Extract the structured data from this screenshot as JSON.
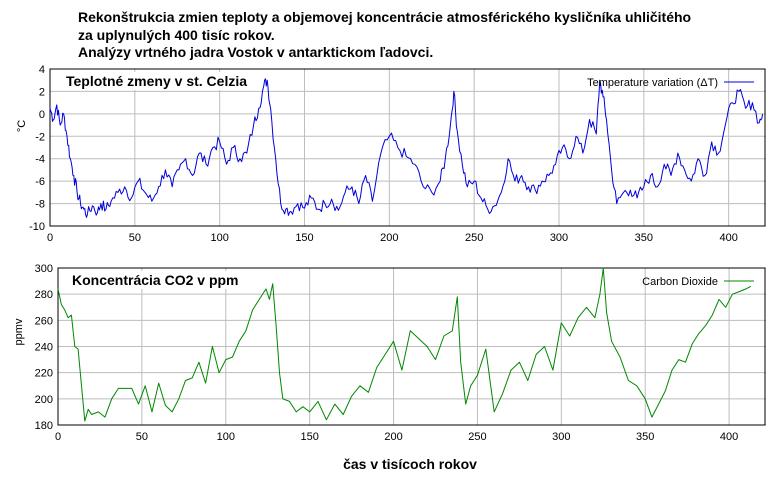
{
  "title_lines": [
    "Rekonštrukcia zmien teploty a objemovej koncentrácie atmosférického kysličníka uhličitého",
    "za uplynulých 400 tisíc rokov.",
    "Analýzy vrtného jadra Vostok v antarktickom ľadovci."
  ],
  "colors": {
    "temperature": "#0000dd",
    "co2": "#008800",
    "grid": "#bdbdbd",
    "frame": "#000000"
  },
  "chart_data": [
    {
      "type": "line",
      "panel_title": "Teplotné zmeny  v st. Celzia",
      "ylabel": "°C",
      "xlim": [
        0,
        422
      ],
      "ylim": [
        -10,
        4
      ],
      "x_ticks": [
        0,
        50,
        100,
        150,
        200,
        250,
        300,
        350,
        400
      ],
      "y_ticks": [
        4,
        2,
        0,
        -2,
        -4,
        -6,
        -8,
        -10
      ],
      "grid": true,
      "legend_position": "top-right",
      "series": [
        {
          "name": "Temperature variation (ΔT)",
          "x": [
            0,
            2,
            4,
            6,
            8,
            10,
            12,
            14,
            16,
            18,
            20,
            22,
            25,
            28,
            30,
            33,
            36,
            40,
            44,
            48,
            52,
            56,
            60,
            64,
            68,
            72,
            76,
            80,
            84,
            88,
            92,
            96,
            100,
            104,
            108,
            112,
            116,
            120,
            123,
            126,
            128,
            130,
            133,
            136,
            139,
            142,
            146,
            150,
            154,
            158,
            162,
            166,
            170,
            174,
            178,
            182,
            186,
            190,
            195,
            200,
            205,
            210,
            215,
            220,
            225,
            230,
            233,
            236,
            238,
            240,
            243,
            246,
            250,
            254,
            258,
            262,
            266,
            270,
            274,
            278,
            282,
            286,
            290,
            294,
            298,
            302,
            306,
            310,
            314,
            318,
            322,
            324,
            326,
            328,
            331,
            334,
            338,
            342,
            346,
            350,
            354,
            358,
            362,
            366,
            370,
            374,
            378,
            382,
            386,
            390,
            394,
            398,
            402,
            406,
            410,
            414,
            418,
            420
          ],
          "y": [
            0.5,
            -0.5,
            0.8,
            -1,
            0,
            -2,
            -4,
            -5.5,
            -7,
            -8,
            -8.5,
            -9,
            -8.2,
            -8.8,
            -8,
            -8.5,
            -7.8,
            -7,
            -6.5,
            -7.5,
            -6,
            -7,
            -7.8,
            -6.5,
            -5,
            -6.5,
            -5,
            -4,
            -5.5,
            -3.5,
            -4.5,
            -3,
            -2.5,
            -4.5,
            -3,
            -4,
            -3.5,
            -1,
            0.5,
            2.5,
            3,
            0.5,
            -4,
            -8,
            -8.5,
            -8.7,
            -8,
            -8.4,
            -7.5,
            -8.5,
            -8,
            -7.6,
            -8.6,
            -7,
            -6.5,
            -8,
            -5.5,
            -7.8,
            -3.5,
            -2,
            -3,
            -3.8,
            -4.5,
            -6.5,
            -7,
            -6,
            -4,
            -1,
            2,
            -1.5,
            -4.5,
            -6.5,
            -6,
            -7.5,
            -8.5,
            -8.2,
            -7,
            -4,
            -6,
            -5.5,
            -6.5,
            -6.8,
            -6,
            -5.5,
            -4.5,
            -3,
            -4,
            -2,
            -3.5,
            -0.5,
            -1.8,
            3,
            1.5,
            -0.5,
            -5,
            -8,
            -7,
            -6.8,
            -7.5,
            -6.5,
            -5.5,
            -6.5,
            -4.5,
            -5.5,
            -3.5,
            -5,
            -6,
            -4,
            -5.5,
            -2.5,
            -3.5,
            -1,
            1,
            2,
            0.5,
            1,
            -0.8,
            0
          ]
        }
      ]
    },
    {
      "type": "line",
      "panel_title": "Koncentrácia CO2 v ppm",
      "ylabel": "ppmv",
      "xlabel": "čas v tisícoch rokov",
      "xlim": [
        0,
        422
      ],
      "ylim": [
        180,
        300
      ],
      "x_ticks": [
        0,
        50,
        100,
        150,
        200,
        250,
        300,
        350,
        400
      ],
      "y_ticks": [
        300,
        280,
        260,
        240,
        220,
        200,
        180
      ],
      "grid": true,
      "legend_position": "top-right",
      "series": [
        {
          "name": "Carbon Dioxide",
          "x": [
            0,
            2,
            4,
            6,
            8,
            10,
            12,
            14,
            16,
            18,
            20,
            24,
            28,
            32,
            36,
            40,
            44,
            48,
            52,
            56,
            60,
            64,
            68,
            72,
            76,
            80,
            84,
            88,
            92,
            96,
            100,
            104,
            108,
            112,
            116,
            120,
            124,
            126,
            128,
            130,
            132,
            134,
            138,
            142,
            146,
            150,
            155,
            160,
            165,
            170,
            175,
            180,
            185,
            190,
            195,
            200,
            205,
            210,
            215,
            220,
            225,
            230,
            235,
            238,
            240,
            243,
            246,
            250,
            255,
            260,
            265,
            270,
            275,
            280,
            285,
            290,
            295,
            300,
            305,
            310,
            315,
            320,
            323,
            325,
            327,
            330,
            335,
            340,
            345,
            350,
            354,
            358,
            362,
            366,
            370,
            374,
            378,
            382,
            386,
            390,
            394,
            398,
            402,
            406,
            410,
            413
          ],
          "y": [
            284,
            272,
            268,
            262,
            264,
            240,
            238,
            210,
            183,
            192,
            188,
            190,
            186,
            200,
            208,
            208,
            208,
            196,
            210,
            190,
            212,
            195,
            190,
            200,
            214,
            216,
            228,
            212,
            240,
            220,
            230,
            232,
            244,
            252,
            268,
            276,
            284,
            276,
            288,
            256,
            220,
            200,
            198,
            190,
            194,
            190,
            198,
            184,
            196,
            188,
            202,
            210,
            205,
            224,
            234,
            244,
            222,
            252,
            246,
            240,
            230,
            248,
            252,
            278,
            228,
            196,
            210,
            218,
            238,
            190,
            204,
            222,
            228,
            214,
            234,
            240,
            222,
            258,
            248,
            262,
            270,
            262,
            280,
            300,
            266,
            244,
            232,
            214,
            210,
            200,
            186,
            196,
            206,
            222,
            230,
            228,
            242,
            250,
            256,
            264,
            276,
            270,
            280,
            282,
            284,
            286
          ]
        }
      ]
    }
  ]
}
